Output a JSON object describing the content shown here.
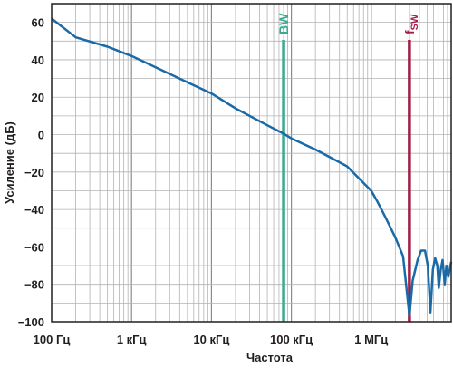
{
  "chart_data": {
    "type": "line",
    "xlabel": "Частота",
    "ylabel": "Усиление (дБ)",
    "x_scale": "log",
    "xlim_hz": [
      100,
      10000000
    ],
    "ylim": [
      -100,
      70
    ],
    "x_ticks": [
      {
        "value": 100,
        "label": "100 Гц"
      },
      {
        "value": 1000,
        "label": "1 кГц"
      },
      {
        "value": 10000,
        "label": "10 кГц"
      },
      {
        "value": 100000,
        "label": "100 кГц"
      },
      {
        "value": 1000000,
        "label": "1 МГц"
      }
    ],
    "y_ticks": [
      60,
      40,
      20,
      0,
      -20,
      -40,
      -60,
      -80,
      -100
    ],
    "grid": true,
    "colors": {
      "curve": "#1a6aa8",
      "bw_marker": "#3aaa92",
      "fsw_marker": "#a21e45",
      "grid": "#b3b3b3",
      "axis": "#231f20"
    },
    "markers": [
      {
        "label": "BW",
        "x": 80000,
        "color": "#3aaa92"
      },
      {
        "label": "f",
        "sub": "SW",
        "x": 3000000,
        "color": "#a21e45"
      }
    ],
    "series": [
      {
        "points": [
          [
            100,
            62
          ],
          [
            200,
            52
          ],
          [
            500,
            47
          ],
          [
            1000,
            42
          ],
          [
            2000,
            36
          ],
          [
            5000,
            28
          ],
          [
            10000,
            22
          ],
          [
            20000,
            14
          ],
          [
            50000,
            5
          ],
          [
            80000,
            0.5
          ],
          [
            100000,
            -2
          ],
          [
            200000,
            -8
          ],
          [
            500000,
            -17
          ],
          [
            1000000,
            -30
          ],
          [
            1200000,
            -36
          ],
          [
            1500000,
            -44
          ],
          [
            2000000,
            -55
          ],
          [
            2500000,
            -65
          ],
          [
            3000000,
            -97
          ],
          [
            3300000,
            -78
          ],
          [
            3800000,
            -67
          ],
          [
            4200000,
            -62
          ],
          [
            4700000,
            -62
          ],
          [
            5100000,
            -70
          ],
          [
            5500000,
            -95
          ],
          [
            5900000,
            -72
          ],
          [
            6300000,
            -66
          ],
          [
            6700000,
            -70
          ],
          [
            7000000,
            -82
          ],
          [
            7400000,
            -72
          ],
          [
            7800000,
            -67
          ],
          [
            8300000,
            -80
          ],
          [
            8700000,
            -70
          ],
          [
            9200000,
            -76
          ],
          [
            10000000,
            -68
          ]
        ]
      }
    ]
  }
}
